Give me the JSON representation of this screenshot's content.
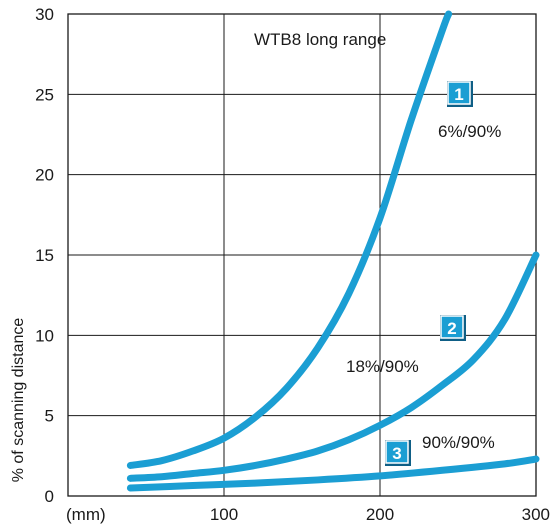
{
  "chart_data": {
    "type": "line",
    "title": "WTB8 long range",
    "xlabel": "(mm)",
    "ylabel": "% of scanning distance",
    "xlim": [
      0,
      300
    ],
    "ylim": [
      0,
      30
    ],
    "x_ticks": [
      "100",
      "200",
      "300"
    ],
    "y_ticks": [
      "0",
      "5",
      "10",
      "15",
      "20",
      "25",
      "30"
    ],
    "grid": true,
    "line_color": "#1b9ed3",
    "badge_color": "#1b9ed3",
    "series": [
      {
        "badge": "1",
        "name": "6%/90%",
        "x": [
          40,
          60,
          80,
          100,
          120,
          140,
          160,
          180,
          200,
          220,
          240,
          244
        ],
        "y": [
          1.9,
          2.2,
          2.8,
          3.6,
          4.9,
          6.7,
          9.2,
          12.6,
          17.3,
          23.4,
          29.0,
          30.0
        ]
      },
      {
        "badge": "2",
        "name": "18%/90%",
        "x": [
          40,
          60,
          80,
          100,
          120,
          140,
          160,
          180,
          200,
          220,
          240,
          260,
          280,
          300
        ],
        "y": [
          1.1,
          1.2,
          1.4,
          1.6,
          1.9,
          2.3,
          2.8,
          3.5,
          4.4,
          5.5,
          6.9,
          8.5,
          11.0,
          15.0
        ]
      },
      {
        "badge": "3",
        "name": "90%/90%",
        "x": [
          40,
          80,
          120,
          160,
          200,
          240,
          280,
          300
        ],
        "y": [
          0.5,
          0.65,
          0.8,
          1.0,
          1.25,
          1.6,
          2.0,
          2.3
        ]
      }
    ]
  }
}
